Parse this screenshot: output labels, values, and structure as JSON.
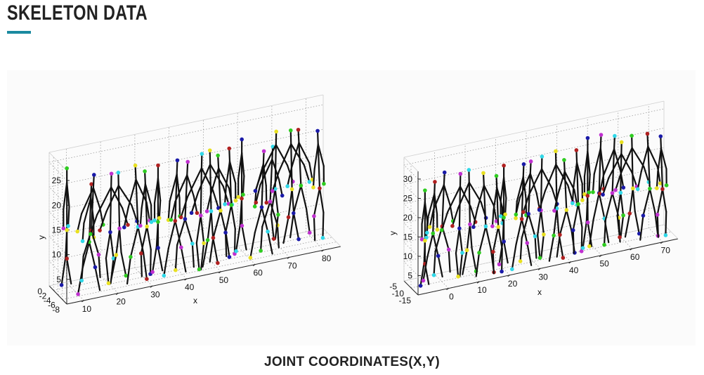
{
  "slide": {
    "title": "SKELETON DATA",
    "caption": "JOINT COORDINATES(X,Y)",
    "accent_color": "#1b8aa0"
  },
  "chart_data": [
    {
      "type": "scatter",
      "title": "",
      "xlabel": "x",
      "ylabel": "y",
      "zlabel": "",
      "x_ticks": [
        "10",
        "20",
        "30",
        "40",
        "50",
        "60",
        "70",
        "80"
      ],
      "y_ticks": [
        "5",
        "10",
        "15",
        "20",
        "25"
      ],
      "z_ticks": [
        "-8",
        "-6",
        "-4",
        "-2",
        "0"
      ],
      "xlim": [
        5,
        85
      ],
      "ylim": [
        0,
        27
      ],
      "zlim": [
        -8,
        0
      ],
      "grid": true,
      "frames": 21
    },
    {
      "type": "scatter",
      "title": "",
      "xlabel": "x",
      "ylabel": "y",
      "zlabel": "",
      "x_ticks": [
        "0",
        "10",
        "20",
        "30",
        "40",
        "50",
        "60",
        "70"
      ],
      "y_ticks": [
        "5",
        "10",
        "15",
        "20",
        "25",
        "30"
      ],
      "z_ticks": [
        "-15",
        "-10",
        "-5"
      ],
      "xlim": [
        -10,
        75
      ],
      "ylim": [
        0,
        32
      ],
      "zlim": [
        -15,
        -5
      ],
      "grid": true,
      "frames": 21
    }
  ]
}
